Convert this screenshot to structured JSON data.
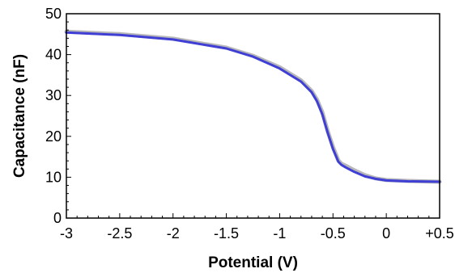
{
  "chart_data": {
    "type": "line",
    "title": "",
    "xlabel": "Potential (V)",
    "ylabel": "Capacitance (nF)",
    "xlim": [
      -3,
      0.5
    ],
    "ylim": [
      0,
      50
    ],
    "grid": false,
    "x_ticks": [
      {
        "value": -3,
        "label": "-3"
      },
      {
        "value": -2.5,
        "label": "-2.5"
      },
      {
        "value": -2,
        "label": "-2"
      },
      {
        "value": -1.5,
        "label": "-1.5"
      },
      {
        "value": -1,
        "label": "-1"
      },
      {
        "value": -0.5,
        "label": "-0.5"
      },
      {
        "value": 0,
        "label": "0"
      },
      {
        "value": 0.5,
        "label": "+0.5"
      }
    ],
    "y_ticks": [
      {
        "value": 0,
        "label": "0"
      },
      {
        "value": 10,
        "label": "10"
      },
      {
        "value": 20,
        "label": "20"
      },
      {
        "value": 30,
        "label": "30"
      },
      {
        "value": 40,
        "label": "40"
      },
      {
        "value": 50,
        "label": "50"
      }
    ],
    "series": [
      {
        "color": "#9a9a9a",
        "x": [
          -3,
          -2.5,
          -2,
          -1.5,
          -1.25,
          -1,
          -0.8,
          -0.7,
          -0.65,
          -0.6,
          -0.55,
          -0.5,
          -0.45,
          -0.42,
          -0.38,
          -0.3,
          -0.2,
          -0.1,
          0,
          0.2,
          0.5
        ],
        "y": [
          45.6,
          45.0,
          43.9,
          41.7,
          39.7,
          36.9,
          33.7,
          31.1,
          29.0,
          25.9,
          21.3,
          17.4,
          14.1,
          13.3,
          12.8,
          11.7,
          10.5,
          9.7,
          9.3,
          9.1,
          8.9
        ]
      },
      {
        "color": "#3f3fd6",
        "x": [
          -3,
          -2.5,
          -2,
          -1.5,
          -1.25,
          -1,
          -0.8,
          -0.7,
          -0.65,
          -0.6,
          -0.55,
          -0.5,
          -0.45,
          -0.42,
          -0.38,
          -0.3,
          -0.2,
          -0.1,
          0,
          0.2,
          0.5
        ],
        "y": [
          45.4,
          44.8,
          43.7,
          41.5,
          39.5,
          36.6,
          33.4,
          30.8,
          28.6,
          25.4,
          20.9,
          16.9,
          13.8,
          13.0,
          12.4,
          11.3,
          10.2,
          9.6,
          9.2,
          9.0,
          8.9
        ]
      }
    ]
  }
}
